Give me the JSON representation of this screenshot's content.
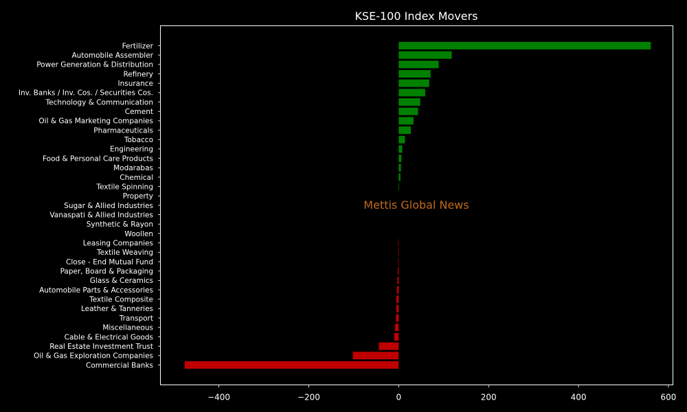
{
  "chart_data": {
    "type": "bar",
    "orientation": "horizontal",
    "title": "KSE-100 Index Movers",
    "watermark": "Mettis Global News",
    "xlim": [
      -530,
      610
    ],
    "xticks": [
      -400,
      -200,
      0,
      200,
      400,
      600
    ],
    "xtick_labels": [
      "−400",
      "−200",
      "0",
      "200",
      "400",
      "600"
    ],
    "grid": false,
    "colors": {
      "positive": "#008000",
      "negative": "#c00000",
      "axes": "#ffffff",
      "background": "#000000"
    },
    "categories": [
      "Fertilizer",
      "Automobile Assembler",
      "Power Generation & Distribution",
      "Refinery",
      "Insurance",
      "Inv. Banks / Inv. Cos. / Securities Cos.",
      "Technology & Communication",
      "Cement",
      "Oil & Gas Marketing Companies",
      "Pharmaceuticals",
      "Tobacco",
      "Engineering",
      "Food & Personal Care Products",
      "Modarabas",
      "Chemical",
      "Textile Spinning",
      "Property",
      "Sugar & Allied Industries",
      "Vanaspati & Allied Industries",
      "Synthetic & Rayon",
      "Woollen",
      "Leasing Companies",
      "Textile Weaving",
      "Close - End Mutual Fund",
      "Paper, Board & Packaging",
      "Glass & Ceramics",
      "Automobile Parts & Accessories",
      "Textile Composite",
      "Leather & Tanneries",
      "Transport",
      "Miscellaneous",
      "Cable & Electrical Goods",
      "Real Estate Investment Trust",
      "Oil & Gas Exploration Companies",
      "Commercial Banks"
    ],
    "values": [
      561,
      118,
      89,
      71,
      68,
      59,
      48,
      43,
      33,
      27,
      14,
      8,
      6,
      5,
      4,
      1,
      0,
      0,
      0,
      0,
      0,
      -1,
      -1,
      -1,
      -2,
      -3,
      -4,
      -5,
      -5,
      -6,
      -8,
      -10,
      -44,
      -102,
      -476
    ]
  }
}
